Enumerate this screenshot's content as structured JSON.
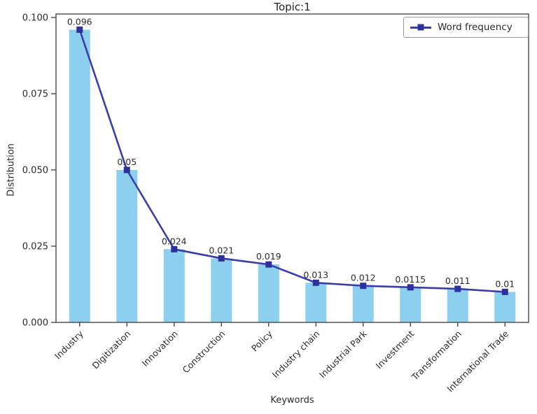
{
  "title": "Topic:1",
  "legend": {
    "label": "Word frequency"
  },
  "axes": {
    "x_label": "Keywords",
    "y_label": "Distribution",
    "y_tick_labels": [
      "0.000",
      "0.025",
      "0.050",
      "0.075",
      "0.100"
    ]
  },
  "colors": {
    "bar": "#8ccfee",
    "line": "#3a3fa8",
    "marker": "#2c319e",
    "axis": "#4a4a4a",
    "text": "#2b2b2b"
  },
  "chart_data": {
    "type": "bar",
    "title": "Topic:1",
    "xlabel": "Keywords",
    "ylabel": "Distribution",
    "categories": [
      "Industry",
      "Digitization",
      "Innovation",
      "Construction",
      "Policy",
      "Industry chain",
      "Industrial Park",
      "Investment",
      "Transformation",
      "International Trade"
    ],
    "values": [
      0.096,
      0.05,
      0.024,
      0.021,
      0.019,
      0.013,
      0.012,
      0.0115,
      0.011,
      0.01
    ],
    "value_labels": [
      "0.096",
      "0.05",
      "0.024",
      "0.021",
      "0.019",
      "0.013",
      "0.012",
      "0.0115",
      "0.011",
      "0.01"
    ],
    "overlay_line_series": {
      "name": "Word frequency",
      "values": [
        0.096,
        0.05,
        0.024,
        0.021,
        0.019,
        0.013,
        0.012,
        0.0115,
        0.011,
        0.01
      ]
    },
    "ylim": [
      0,
      0.1
    ],
    "y_ticks": [
      0,
      0.025,
      0.05,
      0.075,
      0.1
    ],
    "y_tick_labels": [
      "0.000",
      "0.025",
      "0.050",
      "0.075",
      "0.100"
    ],
    "grid": false,
    "legend_position": "upper right",
    "x_tick_rotation_deg": 45
  }
}
